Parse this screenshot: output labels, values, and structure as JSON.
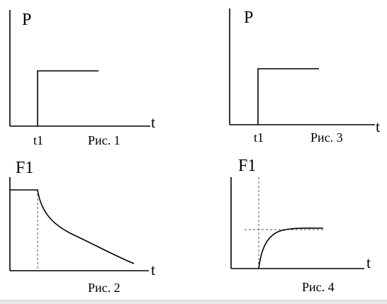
{
  "panels": [
    {
      "id": "fig1",
      "ylabel": "P",
      "xlabel": "t",
      "tick_label": "t1",
      "caption": "Рис. 1",
      "curve": "step"
    },
    {
      "id": "fig3",
      "ylabel": "P",
      "xlabel": "t",
      "tick_label": "t1",
      "caption": "Рис. 3",
      "curve": "step"
    },
    {
      "id": "fig2",
      "ylabel": "F1",
      "xlabel": "t",
      "caption": "Рис. 2",
      "curve": "constant-then-decay",
      "guide_line": "dashed-vertical"
    },
    {
      "id": "fig4",
      "ylabel": "F1",
      "xlabel": "t",
      "caption": "Рис. 4",
      "curve": "rise-to-plateau",
      "guide_lines": [
        "dashed-vertical",
        "dashed-horizontal"
      ]
    }
  ],
  "colors": {
    "line": "#000000",
    "guide": "#555555",
    "background": "#ffffff"
  }
}
